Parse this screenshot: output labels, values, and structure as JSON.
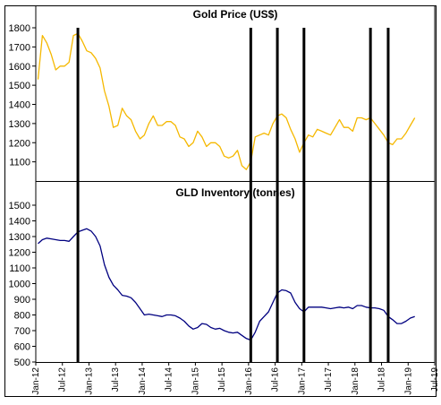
{
  "chart_data": [
    {
      "type": "line",
      "title": "Gold  Price (US$)",
      "ylim": [
        1000,
        1800
      ],
      "yticks": [
        1100,
        1200,
        1300,
        1400,
        1500,
        1600,
        1700,
        1800
      ],
      "line_color": "#F5B800",
      "series": [
        {
          "x": [
            "2012-01",
            "2012-02",
            "2012-03",
            "2012-04",
            "2012-05",
            "2012-06",
            "2012-07",
            "2012-08",
            "2012-09",
            "2012-10",
            "2012-11",
            "2012-12",
            "2013-01",
            "2013-02",
            "2013-03",
            "2013-04",
            "2013-05",
            "2013-06",
            "2013-07",
            "2013-08",
            "2013-09",
            "2013-10",
            "2013-11",
            "2013-12",
            "2014-01",
            "2014-02",
            "2014-03",
            "2014-04",
            "2014-05",
            "2014-06",
            "2014-07",
            "2014-08",
            "2014-09",
            "2014-10",
            "2014-11",
            "2014-12",
            "2015-01",
            "2015-02",
            "2015-03",
            "2015-04",
            "2015-05",
            "2015-06",
            "2015-07",
            "2015-08",
            "2015-09",
            "2015-10",
            "2015-11",
            "2015-12",
            "2016-01",
            "2016-02",
            "2016-03",
            "2016-04",
            "2016-05",
            "2016-06",
            "2016-07",
            "2016-08",
            "2016-09",
            "2016-10",
            "2016-11",
            "2016-12",
            "2017-01",
            "2017-02",
            "2017-03",
            "2017-04",
            "2017-05",
            "2017-06",
            "2017-07",
            "2017-08",
            "2017-09",
            "2017-10",
            "2017-11",
            "2017-12",
            "2018-01",
            "2018-02",
            "2018-03",
            "2018-04",
            "2018-05",
            "2018-06",
            "2018-07",
            "2018-08",
            "2018-09",
            "2018-10",
            "2018-11",
            "2018-12",
            "2019-01",
            "2019-02"
          ],
          "values": [
            1530,
            1760,
            1720,
            1660,
            1580,
            1600,
            1600,
            1620,
            1760,
            1770,
            1730,
            1680,
            1670,
            1640,
            1590,
            1470,
            1390,
            1280,
            1290,
            1380,
            1340,
            1320,
            1260,
            1220,
            1240,
            1300,
            1340,
            1290,
            1290,
            1310,
            1310,
            1290,
            1230,
            1220,
            1180,
            1200,
            1260,
            1230,
            1180,
            1200,
            1200,
            1180,
            1130,
            1120,
            1130,
            1160,
            1080,
            1060,
            1100,
            1230,
            1240,
            1250,
            1240,
            1300,
            1340,
            1350,
            1330,
            1270,
            1220,
            1150,
            1200,
            1240,
            1230,
            1270,
            1260,
            1250,
            1240,
            1280,
            1320,
            1280,
            1280,
            1260,
            1330,
            1330,
            1320,
            1330,
            1300,
            1270,
            1240,
            1200,
            1190,
            1220,
            1220,
            1250,
            1290,
            1330
          ]
        }
      ],
      "events": [
        "2012-10",
        "2016-01",
        "2016-07",
        "2017-01",
        "2018-04",
        "2018-08"
      ]
    },
    {
      "type": "line",
      "title": "GLD  Inventory  (tonnes)",
      "ylim": [
        500,
        1500
      ],
      "yticks": [
        500,
        600,
        700,
        800,
        900,
        1000,
        1100,
        1200,
        1300,
        1400,
        1500
      ],
      "line_color": "#000080",
      "series": [
        {
          "x": [
            "2012-01",
            "2012-02",
            "2012-03",
            "2012-04",
            "2012-05",
            "2012-06",
            "2012-07",
            "2012-08",
            "2012-09",
            "2012-10",
            "2012-11",
            "2012-12",
            "2013-01",
            "2013-02",
            "2013-03",
            "2013-04",
            "2013-05",
            "2013-06",
            "2013-07",
            "2013-08",
            "2013-09",
            "2013-10",
            "2013-11",
            "2013-12",
            "2014-01",
            "2014-02",
            "2014-03",
            "2014-04",
            "2014-05",
            "2014-06",
            "2014-07",
            "2014-08",
            "2014-09",
            "2014-10",
            "2014-11",
            "2014-12",
            "2015-01",
            "2015-02",
            "2015-03",
            "2015-04",
            "2015-05",
            "2015-06",
            "2015-07",
            "2015-08",
            "2015-09",
            "2015-10",
            "2015-11",
            "2015-12",
            "2016-01",
            "2016-02",
            "2016-03",
            "2016-04",
            "2016-05",
            "2016-06",
            "2016-07",
            "2016-08",
            "2016-09",
            "2016-10",
            "2016-11",
            "2016-12",
            "2017-01",
            "2017-02",
            "2017-03",
            "2017-04",
            "2017-05",
            "2017-06",
            "2017-07",
            "2017-08",
            "2017-09",
            "2017-10",
            "2017-11",
            "2017-12",
            "2018-01",
            "2018-02",
            "2018-03",
            "2018-04",
            "2018-05",
            "2018-06",
            "2018-07",
            "2018-08",
            "2018-09",
            "2018-10",
            "2018-11",
            "2018-12",
            "2019-01",
            "2019-02"
          ],
          "values": [
            1255,
            1280,
            1290,
            1285,
            1280,
            1275,
            1275,
            1270,
            1300,
            1330,
            1340,
            1350,
            1335,
            1300,
            1240,
            1120,
            1040,
            990,
            960,
            925,
            920,
            910,
            880,
            840,
            800,
            805,
            800,
            795,
            790,
            800,
            800,
            795,
            780,
            760,
            730,
            710,
            720,
            745,
            740,
            720,
            710,
            715,
            700,
            690,
            685,
            690,
            670,
            650,
            640,
            690,
            760,
            790,
            820,
            880,
            940,
            960,
            955,
            940,
            880,
            840,
            820,
            850,
            850,
            850,
            850,
            845,
            840,
            845,
            850,
            845,
            850,
            840,
            860,
            860,
            850,
            845,
            845,
            840,
            830,
            790,
            770,
            745,
            745,
            760,
            780,
            790
          ]
        }
      ],
      "events": [
        "2012-10",
        "2016-01",
        "2016-07",
        "2017-01",
        "2018-04",
        "2018-08"
      ]
    }
  ],
  "x_axis": {
    "ticks": [
      "Jan-12",
      "Jul-12",
      "Jan-13",
      "Jul-13",
      "Jan-14",
      "Jul-14",
      "Jan-15",
      "Jul-15",
      "Jan-16",
      "Jul-16",
      "Jan-17",
      "Jul-17",
      "Jan-18",
      "Jul-18",
      "Jan-19",
      "Jul-19"
    ],
    "start": "2012-01",
    "end": "2019-07"
  }
}
